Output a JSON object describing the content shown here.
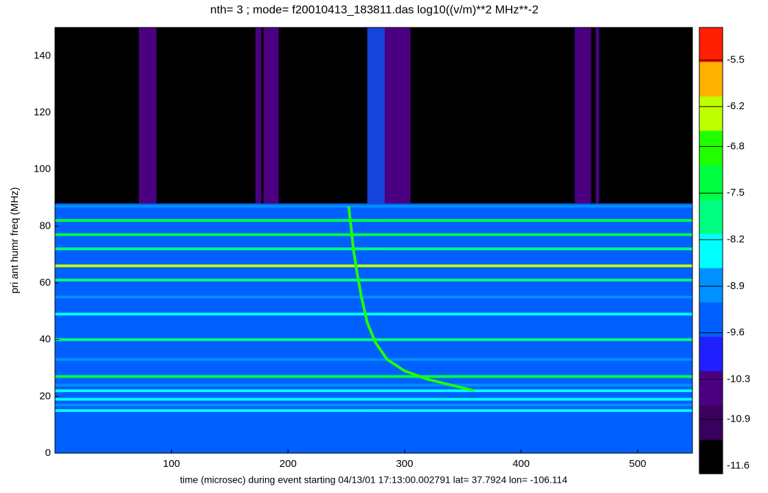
{
  "chart_data": {
    "type": "spectrogram",
    "title": "nth= 3 ; mode=    f20010413_183811.das log10((v/m)**2 MHz**-2",
    "xlabel": "time (microsec) during event starting 04/13/01 17:13:00.002791 lat= 37.7924 lon= -106.114",
    "ylabel": "pri ant  humr freq (MHz)",
    "xlim": [
      0,
      547
    ],
    "ylim": [
      0,
      150
    ],
    "xticks": [
      100,
      200,
      300,
      400,
      500
    ],
    "yticks": [
      0,
      20,
      40,
      60,
      80,
      100,
      120,
      140
    ],
    "floor": {
      "ymax": 88,
      "level": -9.5
    },
    "gates": {
      "x0": [
        72,
        172,
        179,
        268,
        446,
        464
      ],
      "x1": [
        87,
        177,
        192,
        305,
        460,
        467
      ],
      "level": -10.5
    },
    "strip": {
      "x0": 268,
      "x1": 283,
      "level": -9.2
    },
    "lines": {
      "freq": [
        15,
        17,
        19,
        22,
        24,
        27,
        33,
        40,
        49,
        55,
        61,
        66,
        72,
        77,
        82,
        87
      ],
      "level": [
        -8.6,
        -8.8,
        -8.6,
        -8.5,
        -8.9,
        -7.4,
        -8.8,
        -7.6,
        -8.6,
        -8.9,
        -7.6,
        -6.5,
        -7.6,
        -7.3,
        -7.4,
        -8.9
      ]
    },
    "trace": {
      "x": [
        252,
        254,
        256,
        259,
        263,
        268,
        275,
        285,
        300,
        320,
        340,
        360
      ],
      "y": [
        87,
        80,
        72,
        64,
        55,
        46,
        39,
        33,
        29,
        26,
        24,
        22
      ],
      "level": -6.8
    },
    "colorbar": {
      "clim": [
        -11.72,
        -5.01
      ],
      "ticks": [
        -11.6,
        -10.9,
        -10.3,
        -9.6,
        -8.9,
        -8.2,
        -7.5,
        -6.8,
        -6.2,
        -5.5
      ],
      "colors": [
        "#000000",
        "#3a0060",
        "#4b0082",
        "#2020ff",
        "#0060ff",
        "#0090ff",
        "#00ffff",
        "#00ff80",
        "#00ff40",
        "#20ff00",
        "#c0ff00",
        "#ffb000",
        "#ff2000"
      ]
    }
  }
}
